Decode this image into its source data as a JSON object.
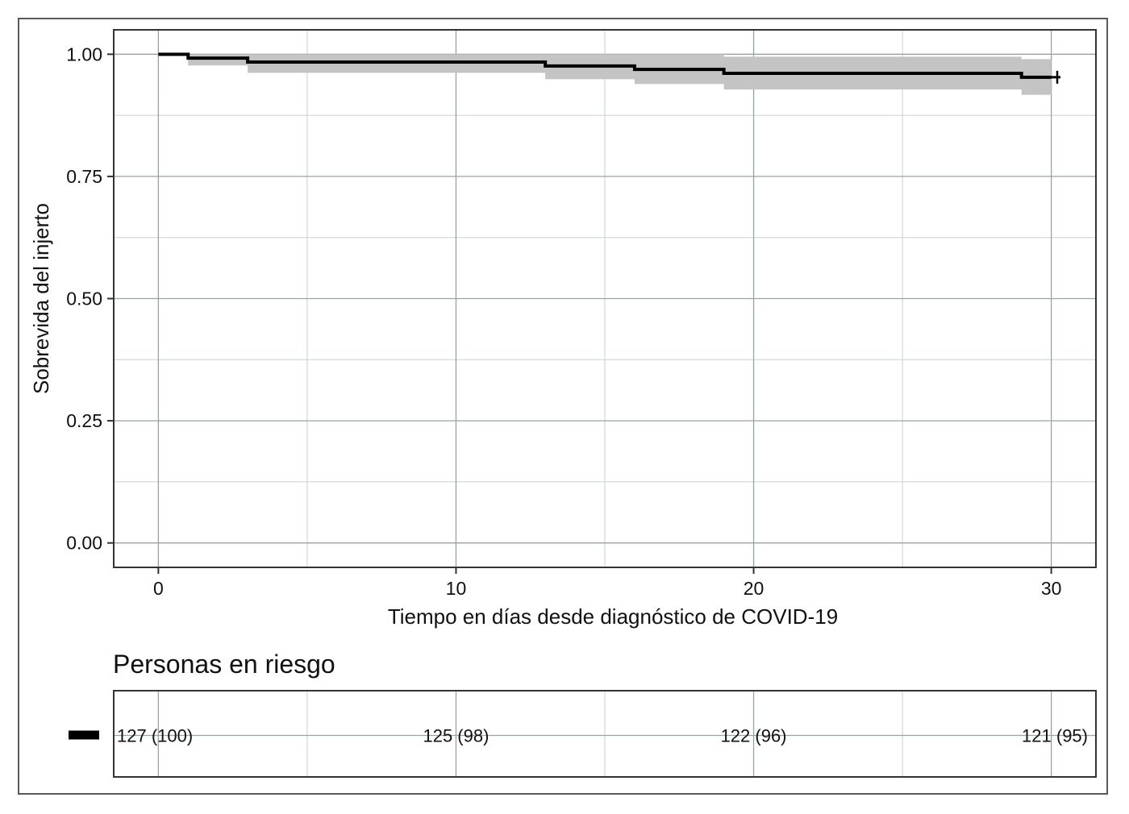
{
  "chart_data": {
    "type": "line",
    "subtype": "kaplan-meier",
    "title": "",
    "xlabel": "Tiempo en días desde diagnóstico de COVID-19",
    "ylabel": "Sobrevida del injerto",
    "xlim": [
      -1.5,
      31.5
    ],
    "ylim": [
      -0.05,
      1.05
    ],
    "x_ticks": [
      0,
      10,
      20,
      30
    ],
    "x_tick_labels": [
      "0",
      "10",
      "20",
      "30"
    ],
    "y_ticks": [
      0,
      0.25,
      0.5,
      0.75,
      1.0
    ],
    "y_tick_labels": [
      "0.00",
      "0.25",
      "0.50",
      "0.75",
      "1.00"
    ],
    "grid": true,
    "series": [
      {
        "steps": [
          {
            "x": 0,
            "y": 1.0,
            "lower": 1.0,
            "upper": 1.0
          },
          {
            "x": 1,
            "y": 0.992,
            "lower": 0.977,
            "upper": 1.0
          },
          {
            "x": 3,
            "y": 0.984,
            "lower": 0.962,
            "upper": 1.0
          },
          {
            "x": 13,
            "y": 0.976,
            "lower": 0.949,
            "upper": 1.0
          },
          {
            "x": 16,
            "y": 0.969,
            "lower": 0.939,
            "upper": 1.0
          },
          {
            "x": 19,
            "y": 0.961,
            "lower": 0.928,
            "upper": 0.995
          },
          {
            "x": 29,
            "y": 0.953,
            "lower": 0.917,
            "upper": 0.99
          }
        ],
        "x_end": 30,
        "censor_marks": [
          30.2
        ],
        "color": "#000000",
        "ci_color": "#c4c4c4"
      }
    ],
    "risk_table": {
      "title": "Personas en riesgo",
      "times": [
        0,
        10,
        20,
        30
      ],
      "labels": [
        "127 (100)",
        "125 (98)",
        "122 (96)",
        "121 (95)"
      ]
    }
  }
}
